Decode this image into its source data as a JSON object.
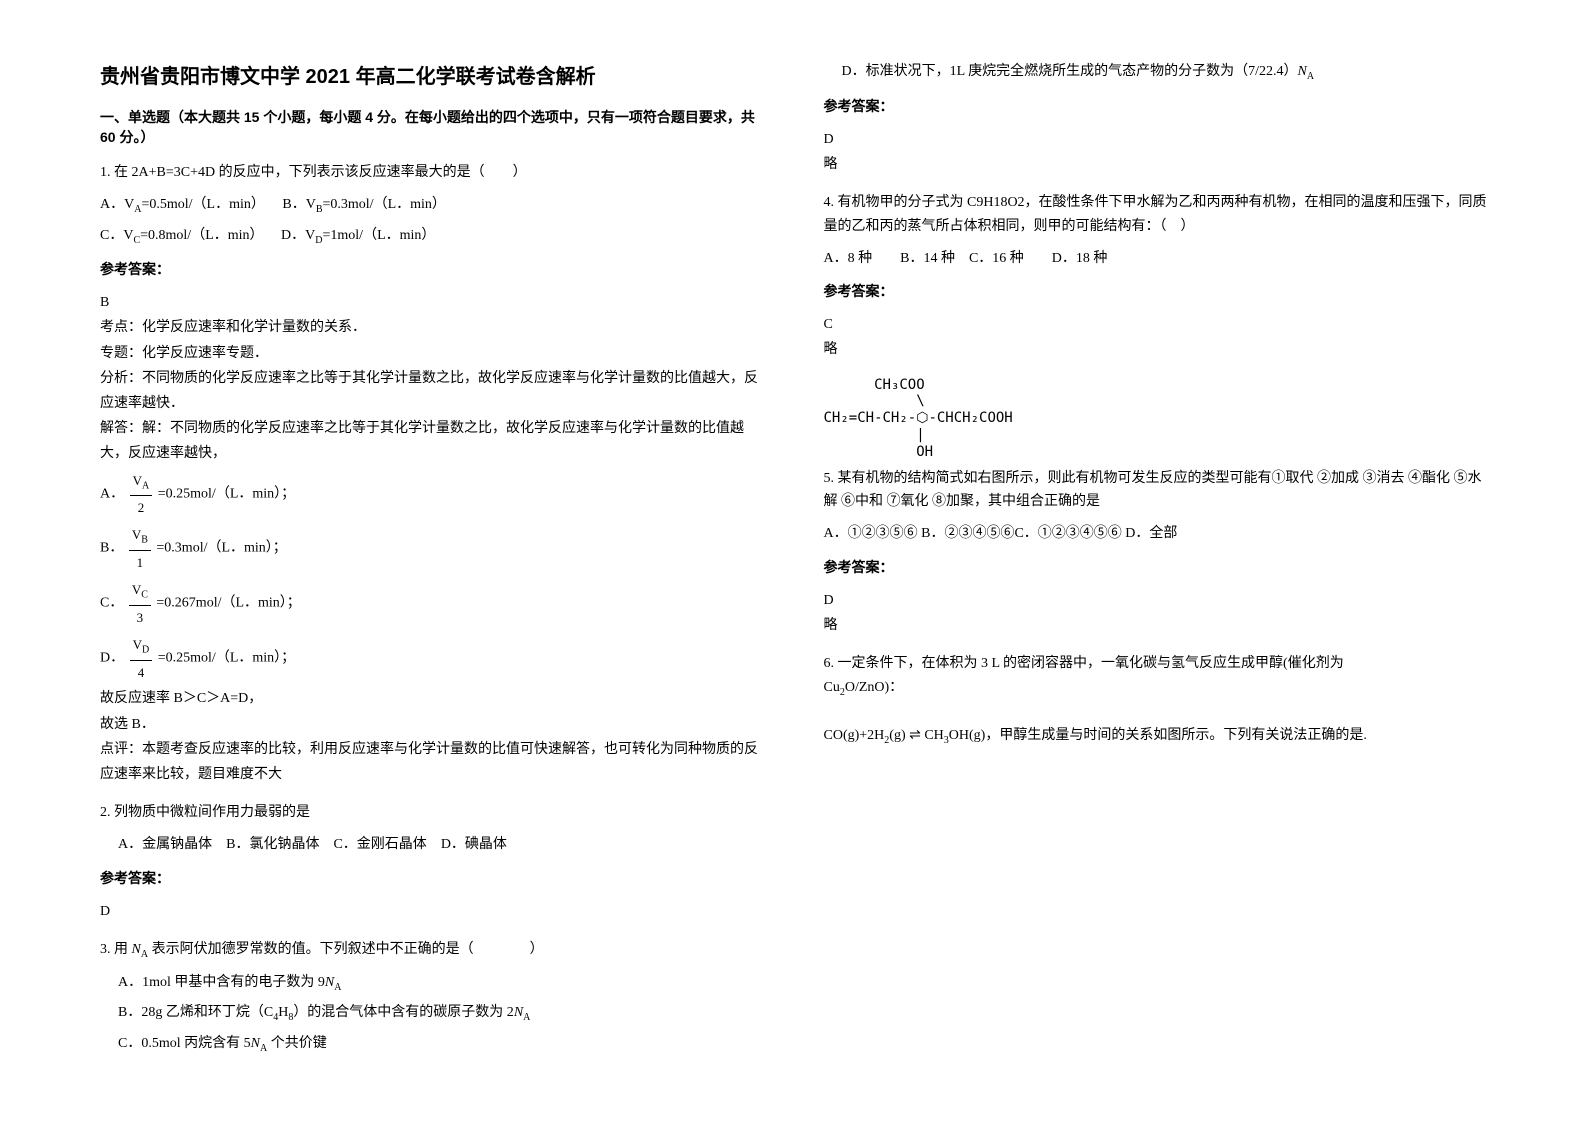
{
  "title": "贵州省贵阳市博文中学 2021 年高二化学联考试卷含解析",
  "section1_header": "一、单选题（本大题共 15 个小题，每小题 4 分。在每小题给出的四个选项中，只有一项符合题目要求，共 60 分。）",
  "q1": {
    "stem": "1. 在 2A+B=3C+4D 的反应中，下列表示该反应速率最大的是（　　）",
    "optA": "A．V",
    "optA_sub": "A",
    "optA_tail": "=0.5mol/（L．min）",
    "optB": "B．V",
    "optB_sub": "B",
    "optB_tail": "=0.3mol/（L．min）",
    "optC": "C．V",
    "optC_sub": "C",
    "optC_tail": "=0.8mol/（L．min）",
    "optD": "D．V",
    "optD_sub": "D",
    "optD_tail": "=1mol/（L．min）",
    "answer_label": "参考答案：",
    "answer_letter": "B",
    "kaodian": "考点：化学反应速率和化学计量数的关系．",
    "zhuanti": "专题：化学反应速率专题．",
    "fenxi": "分析：不同物质的化学反应速率之比等于其化学计量数之比，故化学反应速率与化学计量数的比值越大，反应速率越快．",
    "jieda_pre": "解答：解：不同物质的化学反应速率之比等于其化学计量数之比，故化学反应速率与化学计量数的比值越大，反应速率越快，",
    "calcA_pre": "A．",
    "calcA_num": "V",
    "calcA_numsub": "A",
    "calcA_den": "2",
    "calcA_tail": " =0.25mol/（L．min）；",
    "calcB_pre": "B．",
    "calcB_num": "V",
    "calcB_numsub": "B",
    "calcB_den": "1",
    "calcB_tail": " =0.3mol/（L．min）；",
    "calcC_pre": "C．",
    "calcC_num": "V",
    "calcC_numsub": "C",
    "calcC_den": "3",
    "calcC_tail": " =0.267mol/（L．min）；",
    "calcD_pre": "D．",
    "calcD_num": "V",
    "calcD_numsub": "D",
    "calcD_den": "4",
    "calcD_tail": " =0.25mol/（L．min）；",
    "conclusion1": "故反应速率 B＞C＞A=D，",
    "conclusion2": "故选 B．",
    "dianping": "点评：本题考查反应速率的比较，利用反应速率与化学计量数的比值可快速解答，也可转化为同种物质的反应速率来比较，题目难度不大"
  },
  "q2": {
    "stem": "2. 列物质中微粒间作用力最弱的是",
    "optA": "A．金属钠晶体",
    "optB": "B．氯化钠晶体",
    "optC": "C．金刚石晶体",
    "optD": "D．碘晶体",
    "answer_label": "参考答案：",
    "answer_letter": "D"
  },
  "q3": {
    "stem_pre": "3. 用 ",
    "stem_na": "N",
    "stem_na_sub": "A",
    "stem_tail": " 表示阿伏加德罗常数的值。下列叙述中不正确的是（　　　　）",
    "optA_pre": "A．1mol 甲基中含有的电子数为 9",
    "optA_na": "N",
    "optA_na_sub": "A",
    "optB_pre": "B．28g 乙烯和环丁烷（C",
    "optB_sub1": "4",
    "optB_mid": "H",
    "optB_sub2": "8",
    "optB_tail": "）的混合气体中含有的碳原子数为 2",
    "optB_na": "N",
    "optB_na_sub": "A",
    "optC_pre": "C．0.5mol 丙烷含有 5",
    "optC_na": "N",
    "optC_na_sub": "A",
    "optC_tail": " 个共价键",
    "optD_pre": "D．标准状况下，1L 庚烷完全燃烧所生成的气态产物的分子数为（7/22.4）",
    "optD_na": "N",
    "optD_na_sub": "A",
    "answer_label": "参考答案：",
    "answer_letter": "D",
    "lue": "略"
  },
  "q4": {
    "stem": "4. 有机物甲的分子式为 C9H18O2，在酸性条件下甲水解为乙和丙两种有机物，在相同的温度和压强下，同质量的乙和丙的蒸气所占体积相同，则甲的可能结构有：（　）",
    "options": "A．8 种　　B．14 种　C．16 种　　D．18 种",
    "answer_label": "参考答案：",
    "answer_letter": "C",
    "lue": "略"
  },
  "q5": {
    "structure_l1": "      CH₃COO",
    "structure_l2": "           \\",
    "structure_l3": "CH₂=CH-CH₂-⬡-CHCH₂COOH",
    "structure_l4": "           |",
    "structure_l5": "           OH",
    "stem_pre": "5. ",
    "stem_tail": "某有机物的结构简式如右图所示，则此有机物可发生反应的类型可能有①取代 ②加成 ③消去 ④酯化 ⑤水解 ⑥中和 ⑦氧化 ⑧加聚，其中组合正确的是",
    "options": "A．①②③⑤⑥ B．②③④⑤⑥C．①②③④⑤⑥ D．全部",
    "answer_label": "参考答案：",
    "answer_letter": "D",
    "lue": "略"
  },
  "q6": {
    "stem_p1": "6. 一定条件下，在体积为 3 L 的密闭容器中，一氧化碳与氢气反应生成甲醇(催化剂为",
    "stem_cu": "Cu",
    "stem_cu_sub": "2",
    "stem_cu_tail": "O/ZnO)：",
    "eq_pre": " CO(g)+2H",
    "eq_sub1": "2",
    "eq_mid": "(g) ⇌ CH",
    "eq_sub2": "3",
    "eq_tail": "OH(g)，甲醇生成量与时间的关系如图所示。下列有关说法正确的是."
  }
}
